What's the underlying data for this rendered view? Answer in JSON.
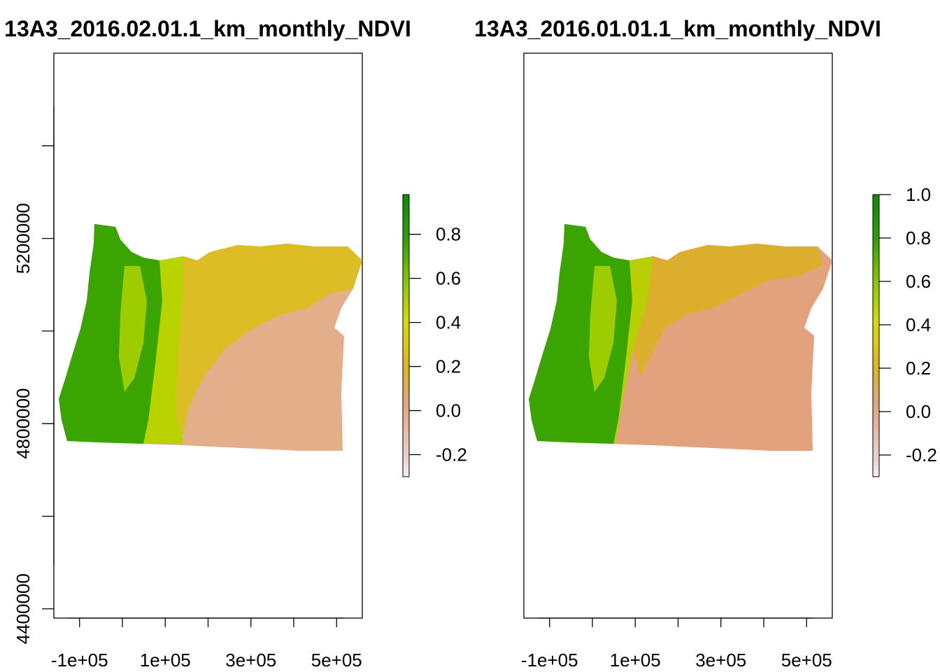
{
  "colors": {
    "background": "#ffffff",
    "axis": "#000000",
    "ramp": [
      "#f2f2f2",
      "#ebd3cf",
      "#e6a583",
      "#e0b228",
      "#d7dc00",
      "#83c500",
      "#2e9e00",
      "#0d8b00"
    ]
  },
  "chart_data": [
    {
      "type": "heatmap",
      "title": "13A3_2016.02.01.1_km_monthly_NDVI",
      "xlabel": "",
      "ylabel": "",
      "xlim": [
        -160000,
        560000
      ],
      "ylim": [
        4380000,
        5600000
      ],
      "x_ticks": [
        -100000,
        0,
        100000,
        200000,
        300000,
        400000,
        500000
      ],
      "x_tick_labels": [
        "-1e+05",
        "1e+05",
        "3e+05",
        "5e+05"
      ],
      "y_ticks": [
        4400000,
        4600000,
        4800000,
        5000000,
        5200000,
        5400000
      ],
      "y_tick_labels": [
        "4400000",
        "4800000",
        "5200000"
      ],
      "legend": {
        "position": "right",
        "range": [
          -0.3,
          0.98
        ],
        "ticks": [
          -0.2,
          0.0,
          0.2,
          0.4,
          0.6,
          0.8
        ],
        "tick_labels": [
          "-0.2",
          "0.0",
          "0.2",
          "0.4",
          "0.6",
          "0.8"
        ]
      },
      "grid": false
    },
    {
      "type": "heatmap",
      "title": "13A3_2016.01.01.1_km_monthly_NDVI",
      "xlabel": "",
      "ylabel": "",
      "xlim": [
        -160000,
        560000
      ],
      "ylim": [
        4380000,
        5600000
      ],
      "x_ticks": [
        -100000,
        0,
        100000,
        200000,
        300000,
        400000,
        500000
      ],
      "x_tick_labels": [
        "-1e+05",
        "1e+05",
        "3e+05",
        "5e+05"
      ],
      "legend": {
        "position": "right",
        "range": [
          -0.3,
          1.0
        ],
        "ticks": [
          -0.2,
          0.0,
          0.2,
          0.4,
          0.6,
          0.8,
          1.0
        ],
        "tick_labels": [
          "-0.2",
          "0.0",
          "0.2",
          "0.4",
          "0.6",
          "0.8",
          "1.0"
        ]
      },
      "grid": false
    }
  ]
}
